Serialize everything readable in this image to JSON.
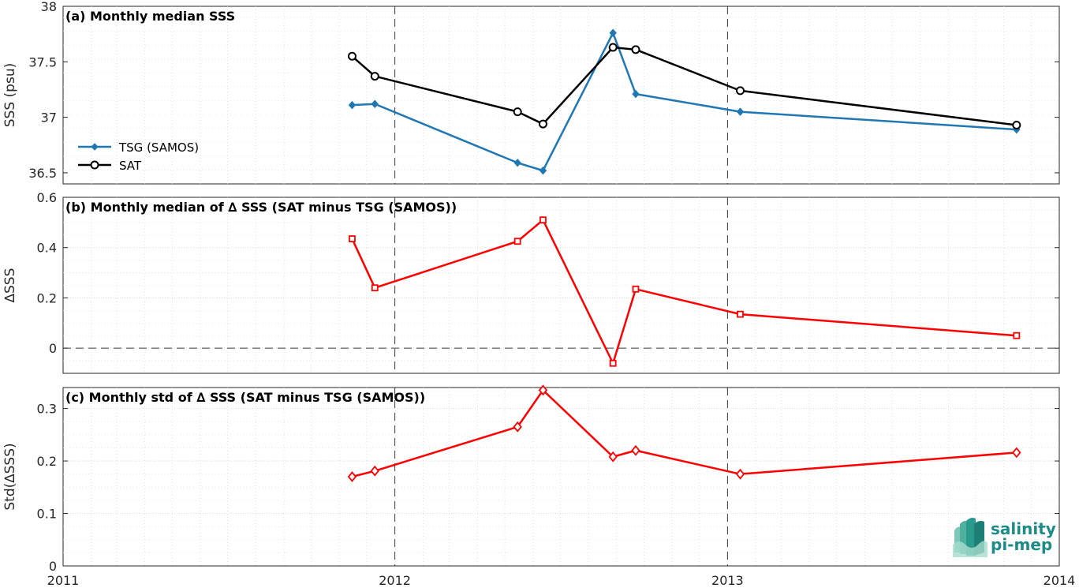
{
  "chart_data": [
    {
      "type": "line",
      "title": "(a) Monthly median SSS",
      "ylabel": "SSS (psu)",
      "ylim": [
        36.4,
        38
      ],
      "yticks": [
        36.5,
        37,
        37.5,
        38
      ],
      "ytick_labels": [
        "36.5",
        "37",
        "37.5",
        "38"
      ],
      "grid": true,
      "legend": "bottom-left",
      "series": [
        {
          "name": "TSG (SAMOS)",
          "color": "#1f77b4",
          "marker": "diamond-filled",
          "x": [
            "2011-11-15",
            "2011-12-10",
            "2012-05-15",
            "2012-06-12",
            "2012-08-28",
            "2012-09-22",
            "2013-01-15",
            "2013-11-15"
          ],
          "values": [
            37.11,
            37.12,
            36.59,
            36.52,
            37.76,
            37.21,
            37.05,
            36.89
          ]
        },
        {
          "name": "SAT",
          "color": "#000000",
          "marker": "circle-open",
          "x": [
            "2011-11-15",
            "2011-12-10",
            "2012-05-15",
            "2012-06-12",
            "2012-08-28",
            "2012-09-22",
            "2013-01-15",
            "2013-11-15"
          ],
          "values": [
            37.55,
            37.37,
            37.05,
            36.94,
            37.63,
            37.61,
            37.24,
            36.93
          ]
        }
      ]
    },
    {
      "type": "line",
      "title": "(b) Monthly median of ∆ SSS (SAT minus TSG (SAMOS))",
      "ylabel": "∆SSS",
      "ylim": [
        -0.1,
        0.6
      ],
      "yticks": [
        0,
        0.2,
        0.4,
        0.6
      ],
      "ytick_labels": [
        "0",
        "0.2",
        "0.4",
        "0.6"
      ],
      "grid": true,
      "zero_line": true,
      "series": [
        {
          "color": "#ff0000",
          "marker": "square-open",
          "x": [
            "2011-11-15",
            "2011-12-10",
            "2012-05-15",
            "2012-06-12",
            "2012-08-28",
            "2012-09-22",
            "2013-01-15",
            "2013-11-15"
          ],
          "values": [
            0.435,
            0.24,
            0.425,
            0.51,
            -0.06,
            0.235,
            0.135,
            0.05
          ]
        }
      ]
    },
    {
      "type": "line",
      "title": "(c) Monthly std of ∆ SSS (SAT minus TSG (SAMOS))",
      "ylabel": "Std(∆SSS)",
      "ylim": [
        0,
        0.34
      ],
      "yticks": [
        0,
        0.1,
        0.2,
        0.3
      ],
      "ytick_labels": [
        "0",
        "0.1",
        "0.2",
        "0.3"
      ],
      "grid": true,
      "series": [
        {
          "color": "#ff0000",
          "marker": "diamond-open",
          "x": [
            "2011-11-15",
            "2011-12-10",
            "2012-05-15",
            "2012-06-12",
            "2012-08-28",
            "2012-09-22",
            "2013-01-15",
            "2013-11-15"
          ],
          "values": [
            0.17,
            0.181,
            0.265,
            0.335,
            0.208,
            0.22,
            0.175,
            0.216
          ]
        }
      ]
    }
  ],
  "x_axis": {
    "xlim": [
      "2011-01-01",
      "2014-01-01"
    ],
    "tick_labels": [
      "2011",
      "2012",
      "2013",
      "2014"
    ],
    "year_dividers": [
      "2012-01-01",
      "2013-01-01"
    ]
  },
  "logo": {
    "line1": "salinity",
    "line2": "pi-mep",
    "color": "#1d8c87"
  }
}
